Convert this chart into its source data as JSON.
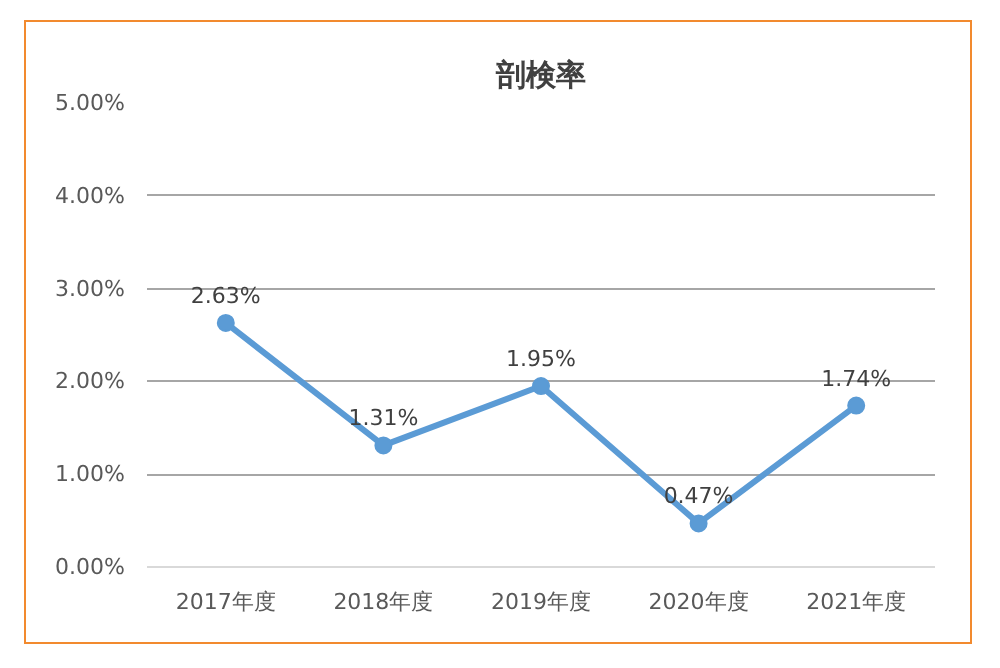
{
  "chart_data": {
    "type": "line",
    "title": "剖検率",
    "categories": [
      "2017年度",
      "2018年度",
      "2019年度",
      "2020年度",
      "2021年度"
    ],
    "series": [
      {
        "color": "#5b9bd5",
        "values": [
          2.63,
          1.31,
          1.95,
          0.47,
          1.74
        ],
        "value_labels": [
          "2.63%",
          "1.31%",
          "1.95%",
          "0.47%",
          "1.74%"
        ]
      }
    ],
    "ylim": [
      0,
      5
    ],
    "yticks": [
      {
        "value": 0,
        "label": "0.00%"
      },
      {
        "value": 1,
        "label": "1.00%"
      },
      {
        "value": 2,
        "label": "2.00%"
      },
      {
        "value": 3,
        "label": "3.00%"
      },
      {
        "value": 4,
        "label": "4.00%"
      },
      {
        "value": 5,
        "label": "5.00%"
      }
    ],
    "grid": "y",
    "marker": "circle",
    "line_style": "solid"
  }
}
